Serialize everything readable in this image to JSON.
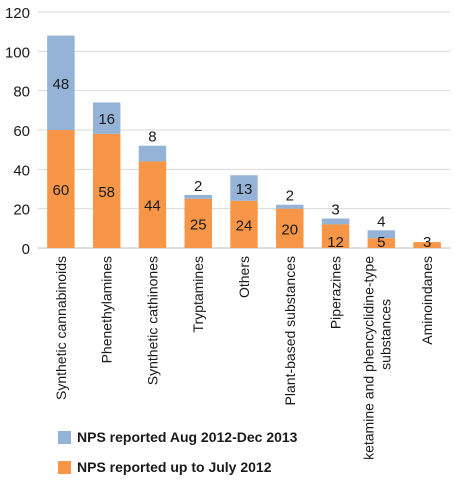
{
  "colors": {
    "new_series": "#95B3D7",
    "old_series": "#F79646",
    "grid": "#D9D9D9",
    "axis_text": "#1a1a1a"
  },
  "chart_data": {
    "type": "bar",
    "stacked": true,
    "categories": [
      "Synthetic cannabinoids",
      "Phenethylamines",
      "Synthetic cathinones",
      "Tryptamines",
      "Others",
      "Plant-based substances",
      "Piperazines",
      "ketamine and phencyclidine-type substances",
      "Aminoindanes"
    ],
    "series": [
      {
        "name": "NPS reported up to July 2012",
        "values": [
          60,
          58,
          44,
          25,
          24,
          20,
          12,
          5,
          3
        ]
      },
      {
        "name": "NPS reported Aug 2012-Dec 2013",
        "values": [
          48,
          16,
          8,
          2,
          13,
          2,
          3,
          4,
          0
        ]
      }
    ],
    "ylim": [
      0,
      120
    ],
    "yticks": [
      "0",
      "20",
      "40",
      "60",
      "80",
      "100",
      "120"
    ],
    "grid": true,
    "legend_position": "bottom",
    "legend": [
      {
        "label": "NPS reported Aug 2012-Dec 2013",
        "series": 1
      },
      {
        "label": "NPS reported up to July 2012",
        "series": 0
      }
    ]
  }
}
